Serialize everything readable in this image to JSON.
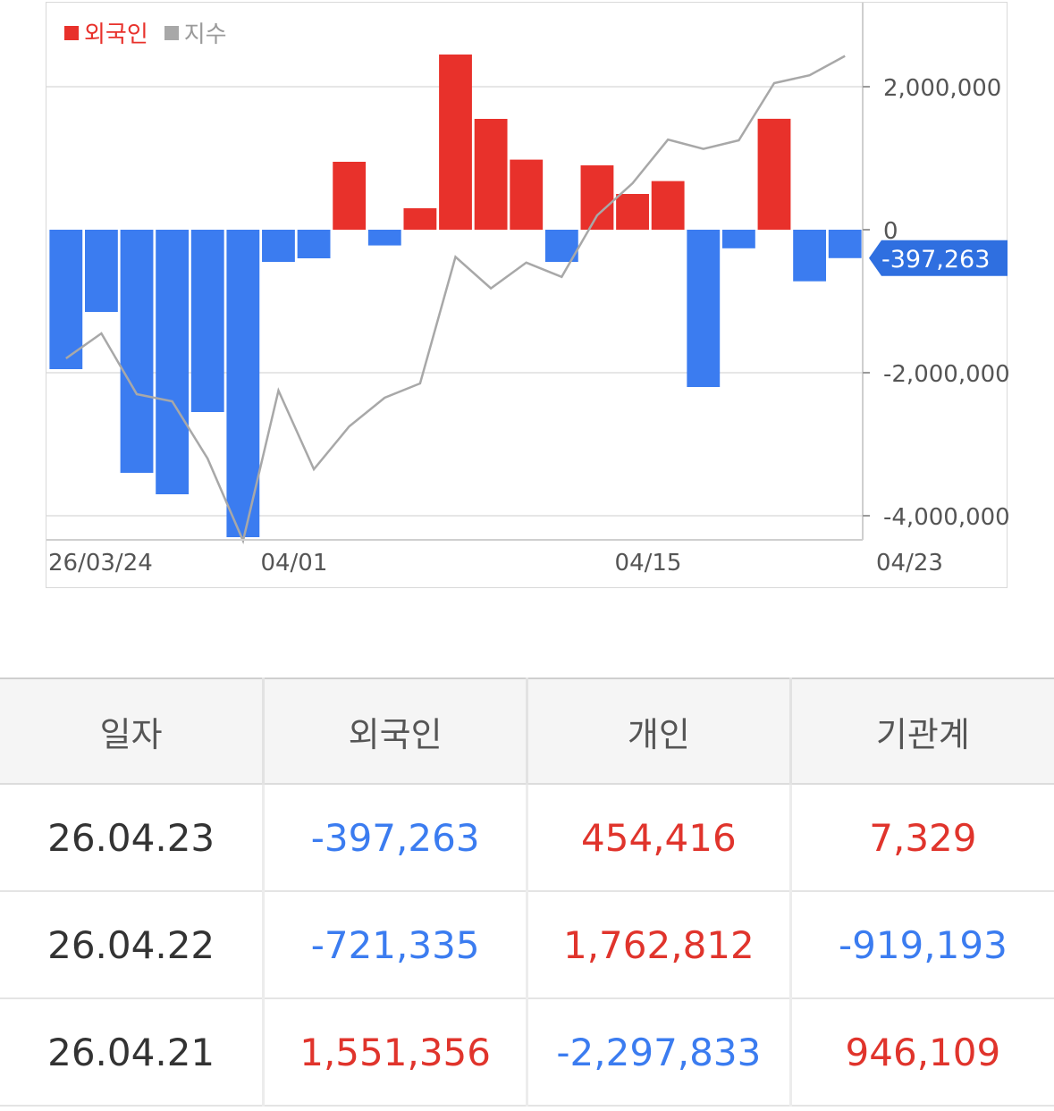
{
  "chart": {
    "legend": [
      {
        "label": "외국인",
        "color": "#e8312b"
      },
      {
        "label": "지수",
        "color": "#a8a8a8"
      }
    ],
    "current_value_tag": "-397,263",
    "colors": {
      "positive": "#e8312b",
      "negative": "#3b7cf0",
      "index_line": "#a8a8a8",
      "tag_bg": "#2f6fe0"
    }
  },
  "chart_data": {
    "type": "bar",
    "series": [
      {
        "name": "외국인",
        "values": [
          -1950000,
          -1150000,
          -3400000,
          -3700000,
          -2550000,
          -4300000,
          -450000,
          -400000,
          950000,
          -220000,
          300000,
          2450000,
          1550000,
          980000,
          -450000,
          900000,
          500000,
          680000,
          -2200000,
          -260000,
          1551356,
          -721335,
          -397263
        ]
      },
      {
        "name": "지수",
        "type": "line",
        "values": [
          -1800000,
          -1450000,
          -2300000,
          -2400000,
          -3200000,
          -4350000,
          -2250000,
          -3350000,
          -2750000,
          -2350000,
          -2150000,
          -380000,
          -820000,
          -460000,
          -660000,
          200000,
          650000,
          1260000,
          1130000,
          1250000,
          2050000,
          2160000,
          2430000
        ]
      }
    ],
    "y_ticks": [
      "2,000,000",
      "0",
      "-2,000,000",
      "-4,000,000"
    ],
    "ylim": [
      -4300000,
      3100000
    ],
    "x_ticks": [
      "26/03/24",
      "04/01",
      "04/15",
      "04/23"
    ],
    "grid": true,
    "legend_position": "top-left"
  },
  "table": {
    "headers": [
      "일자",
      "외국인",
      "개인",
      "기관계"
    ],
    "rows": [
      {
        "date": "26.04.23",
        "foreign": "-397,263",
        "individual": "454,416",
        "institution": "7,329"
      },
      {
        "date": "26.04.22",
        "foreign": "-721,335",
        "individual": "1,762,812",
        "institution": "-919,193"
      },
      {
        "date": "26.04.21",
        "foreign": "1,551,356",
        "individual": "-2,297,833",
        "institution": "946,109"
      }
    ]
  }
}
